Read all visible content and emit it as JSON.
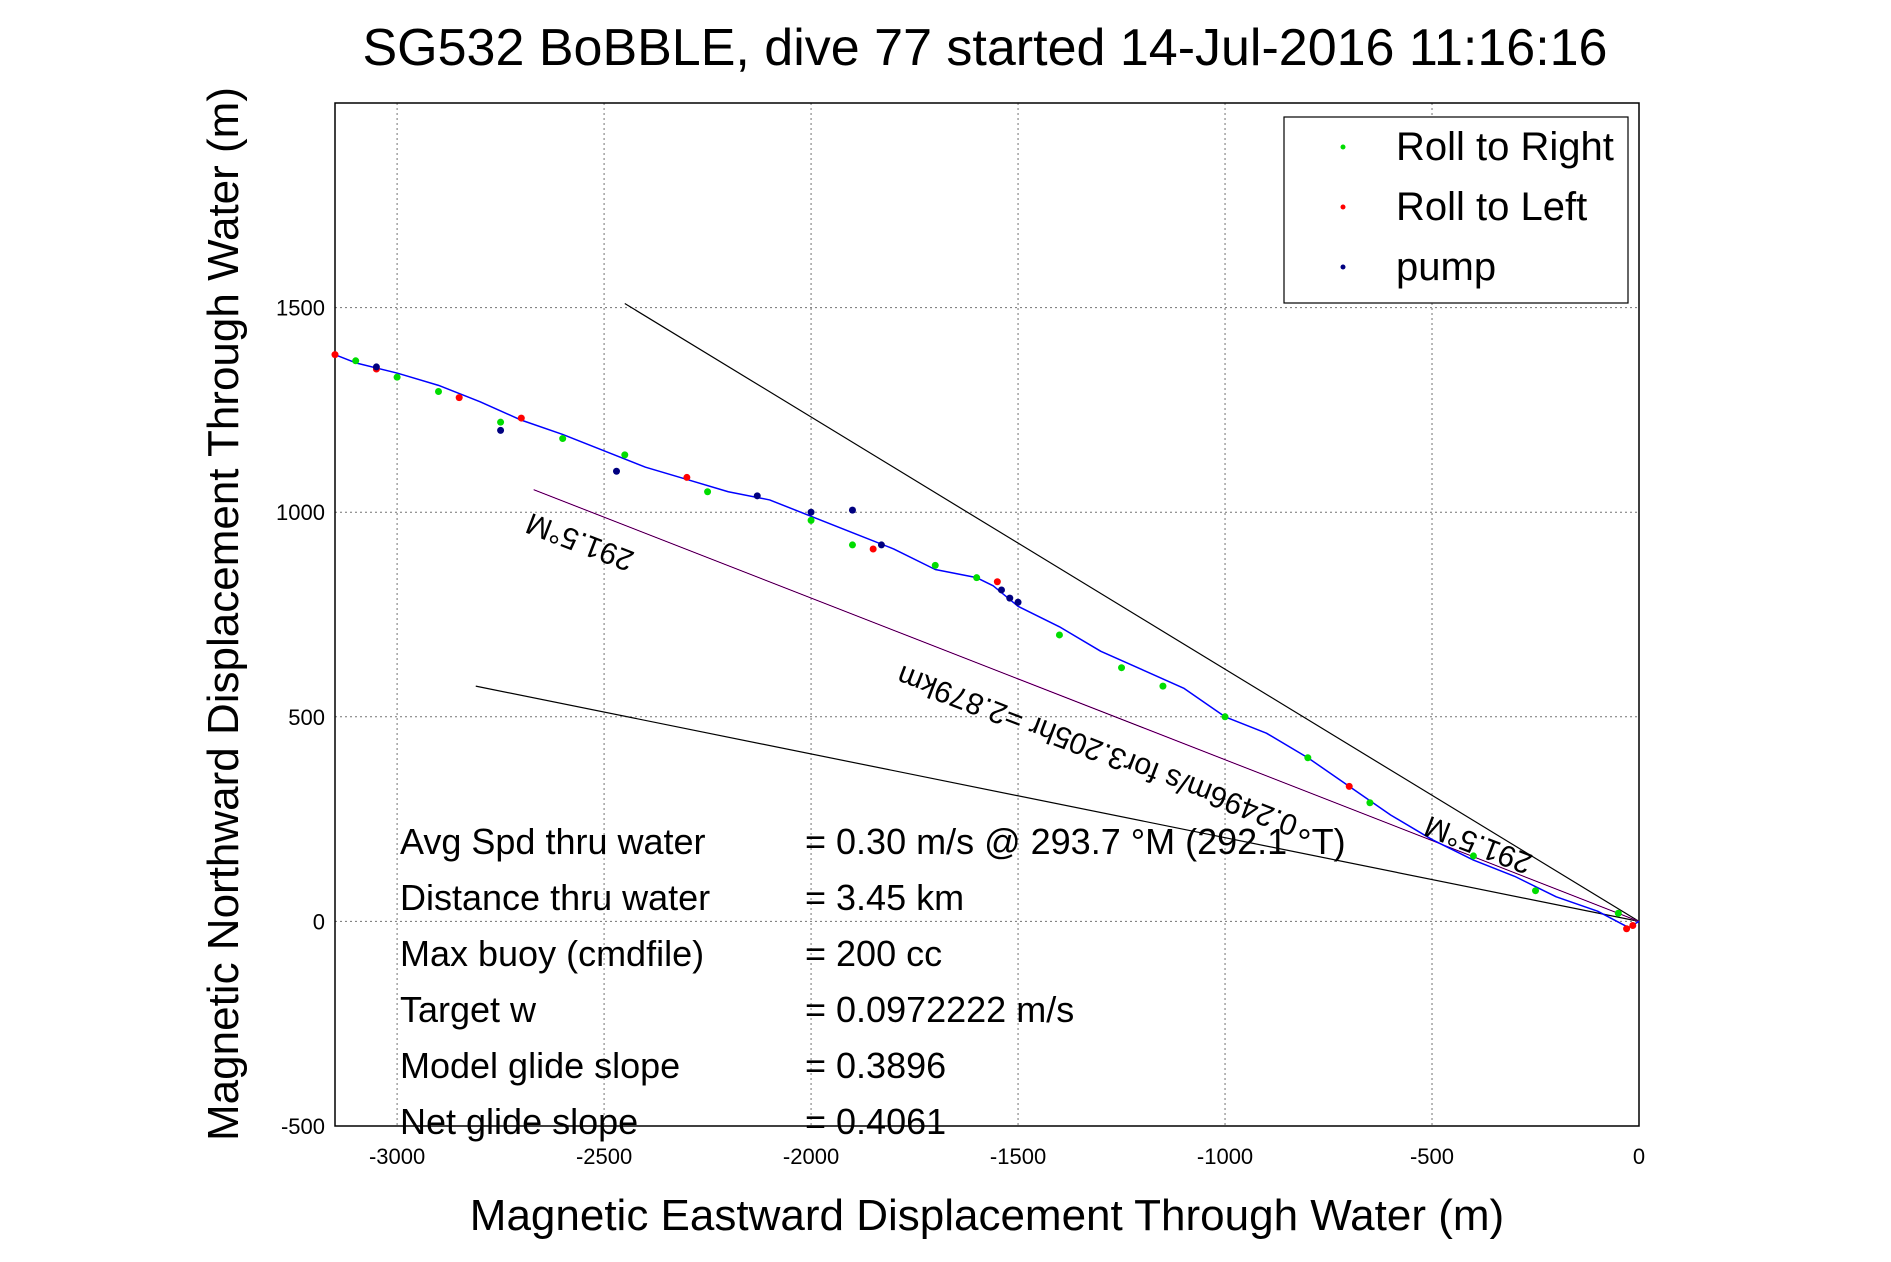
{
  "chart_data": {
    "type": "line",
    "title": "SG532 BoBBLE, dive 77 started 14-Jul-2016 11:16:16",
    "xlabel": "Magnetic Eastward Displacement Through Water (m)",
    "ylabel": "Magnetic Northward Displacement Through Water (m)",
    "xlim": [
      -3150,
      0
    ],
    "ylim": [
      -500,
      2000
    ],
    "x_ticks": [
      -3000,
      -2500,
      -2000,
      -1500,
      -1000,
      -500,
      0
    ],
    "y_ticks": [
      -500,
      0,
      500,
      1000,
      1500
    ],
    "grid": true,
    "legend": {
      "placement": "top-right",
      "entries": [
        {
          "label": "Roll to Right",
          "color": "#00dd00"
        },
        {
          "label": "Roll to Left",
          "color": "#ff0000"
        },
        {
          "label": "pump",
          "color": "#000080"
        }
      ]
    },
    "track": {
      "color": "#0000ff",
      "x": [
        0,
        -25,
        -100,
        -200,
        -300,
        -400,
        -500,
        -600,
        -700,
        -800,
        -900,
        -1000,
        -1100,
        -1200,
        -1300,
        -1400,
        -1500,
        -1560,
        -1600,
        -1700,
        -1800,
        -1900,
        -2000,
        -2100,
        -2200,
        -2300,
        -2400,
        -2500,
        -2600,
        -2700,
        -2800,
        -2900,
        -3000,
        -3100,
        -3150
      ],
      "y": [
        0,
        -15,
        25,
        60,
        110,
        150,
        200,
        260,
        330,
        400,
        460,
        500,
        570,
        615,
        660,
        720,
        770,
        820,
        840,
        860,
        910,
        950,
        990,
        1030,
        1050,
        1080,
        1110,
        1150,
        1190,
        1225,
        1270,
        1310,
        1340,
        1365,
        1385
      ]
    },
    "markers": {
      "roll_right": {
        "x": [
          -50,
          -250,
          -400,
          -650,
          -800,
          -1000,
          -1150,
          -1250,
          -1400,
          -1600,
          -1700,
          -1900,
          -2000,
          -2250,
          -2450,
          -2600,
          -2750,
          -2900,
          -3000,
          -3100
        ],
        "y": [
          20,
          75,
          160,
          290,
          400,
          500,
          575,
          620,
          700,
          840,
          870,
          920,
          980,
          1050,
          1140,
          1180,
          1220,
          1295,
          1330,
          1370
        ]
      },
      "roll_left": {
        "x": [
          -15,
          -30,
          -700,
          -1550,
          -1850,
          -2300,
          -2700,
          -2850,
          -3050,
          -3150
        ],
        "y": [
          -10,
          -18,
          330,
          830,
          910,
          1085,
          1230,
          1280,
          1350,
          1385
        ]
      },
      "pump": {
        "x": [
          -1520,
          -1540,
          -1500,
          -1830,
          -1900,
          -2000,
          -2130,
          -2470,
          -2750,
          -3050
        ],
        "y": [
          790,
          810,
          780,
          920,
          1005,
          1000,
          1040,
          1100,
          1200,
          1355
        ]
      }
    },
    "reference_lines": [
      {
        "color": "#000000",
        "x": [
          0,
          -2450
        ],
        "y": [
          0,
          1510
        ]
      },
      {
        "color": "#000000",
        "x": [
          0,
          -2810
        ],
        "y": [
          0,
          575
        ]
      },
      {
        "color": "#ff00ff",
        "x": [
          0,
          -2670
        ],
        "y": [
          0,
          1055
        ]
      },
      {
        "color": "#000000",
        "x": [
          0,
          -2670
        ],
        "y": [
          0,
          1055
        ]
      }
    ],
    "annotations": [
      {
        "text": "291.5°M",
        "x": -2550,
        "y": 950,
        "rotation": 21
      },
      {
        "text": "0.2496m/s for3.205hr =2.879km",
        "x": -1300,
        "y": 440,
        "rotation": 21
      },
      {
        "text": "291.5°M",
        "x": -380,
        "y": 210,
        "rotation": 21
      }
    ],
    "stats": [
      {
        "label": "Avg Spd thru water",
        "value": "=  0.30 m/s @ 293.7 °M (292.1 °T)"
      },
      {
        "label": "Distance thru water",
        "value": "=  3.45 km"
      },
      {
        "label": "Max buoy (cmdfile)",
        "value": "= 200 cc"
      },
      {
        "label": "Target w",
        "value": "= 0.0972222 m/s"
      },
      {
        "label": "Model glide slope",
        "value": "= 0.3896"
      },
      {
        "label": "Net glide slope",
        "value": "= 0.4061"
      }
    ]
  }
}
